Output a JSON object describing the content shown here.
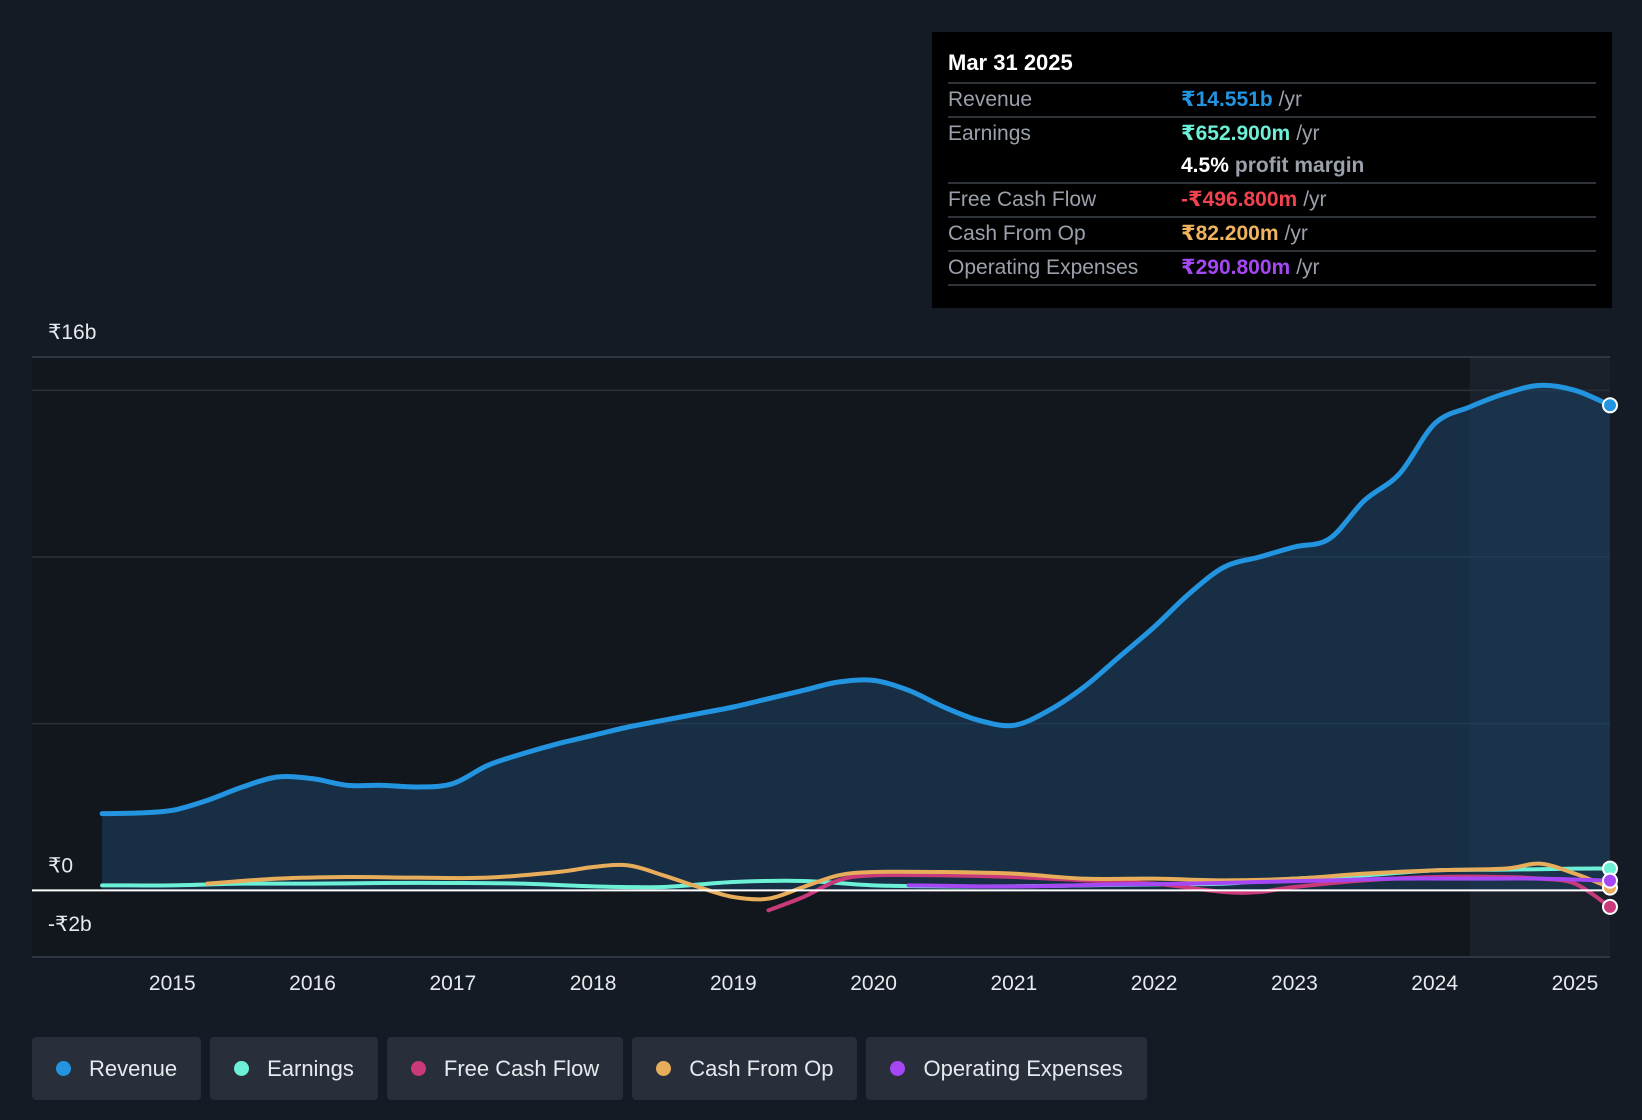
{
  "tooltip": {
    "date": "Mar 31 2025",
    "rows": [
      {
        "label": "Revenue",
        "value": "₹14.551b",
        "unit": "/yr",
        "color": "#2394df"
      },
      {
        "label": "Earnings",
        "value": "₹652.900m",
        "unit": "/yr",
        "color": "#6cf0d6"
      },
      {
        "label": "",
        "value": "4.5%",
        "unit": "profit margin",
        "color": "#ffffff"
      },
      {
        "label": "Free Cash Flow",
        "value": "-₹496.800m",
        "unit": "/yr",
        "color": "#f0424f"
      },
      {
        "label": "Cash From Op",
        "value": "₹82.200m",
        "unit": "/yr",
        "color": "#f0b45e"
      },
      {
        "label": "Operating Expenses",
        "value": "₹290.800m",
        "unit": "/yr",
        "color": "#a547f5"
      }
    ]
  },
  "legend": [
    {
      "label": "Revenue",
      "color": "#2394df"
    },
    {
      "label": "Earnings",
      "color": "#6cf0d6"
    },
    {
      "label": "Free Cash Flow",
      "color": "#c93a7a"
    },
    {
      "label": "Cash From Op",
      "color": "#e8ad5b"
    },
    {
      "label": "Operating Expenses",
      "color": "#a547f5"
    }
  ],
  "chart_data": {
    "type": "area",
    "title": "",
    "xlabel": "",
    "ylabel": "",
    "ylim": [
      -2,
      16
    ],
    "xlim": [
      2014.0,
      2025.25
    ],
    "x_ticks": [
      "2015",
      "2016",
      "2017",
      "2018",
      "2019",
      "2020",
      "2021",
      "2022",
      "2023",
      "2024",
      "2025"
    ],
    "x_tick_values": [
      2015,
      2016,
      2017,
      2018,
      2019,
      2020,
      2021,
      2022,
      2023,
      2024,
      2025
    ],
    "y_labels": [
      {
        "value": 16,
        "label": "₹16b"
      },
      {
        "value": 0,
        "label": "₹0"
      },
      {
        "value": -2,
        "label": "-₹2b"
      }
    ],
    "forecast_start": 2024.25,
    "series": [
      {
        "name": "Revenue",
        "color": "#2394df",
        "filled": true,
        "x": [
          2014.5,
          2014.75,
          2015.0,
          2015.25,
          2015.5,
          2015.75,
          2016.0,
          2016.25,
          2016.5,
          2016.75,
          2017.0,
          2017.25,
          2017.5,
          2017.75,
          2018.0,
          2018.25,
          2018.5,
          2018.75,
          2019.0,
          2019.25,
          2019.5,
          2019.75,
          2020.0,
          2020.25,
          2020.5,
          2020.75,
          2021.0,
          2021.25,
          2021.5,
          2021.75,
          2022.0,
          2022.25,
          2022.5,
          2022.75,
          2023.0,
          2023.25,
          2023.5,
          2023.75,
          2024.0,
          2024.25,
          2024.5,
          2024.75,
          2025.0,
          2025.25
        ],
        "values": [
          2.3,
          2.32,
          2.4,
          2.7,
          3.1,
          3.4,
          3.35,
          3.15,
          3.15,
          3.1,
          3.2,
          3.75,
          4.1,
          4.4,
          4.65,
          4.9,
          5.1,
          5.3,
          5.5,
          5.75,
          6.0,
          6.25,
          6.3,
          6.0,
          5.5,
          5.1,
          4.95,
          5.4,
          6.1,
          7.0,
          7.9,
          8.9,
          9.7,
          10.0,
          10.3,
          10.55,
          11.7,
          12.5,
          14.0,
          14.5,
          14.9,
          15.15,
          15.0,
          14.551
        ]
      },
      {
        "name": "Earnings",
        "color": "#6cf0d6",
        "filled": false,
        "x": [
          2014.5,
          2015.0,
          2015.5,
          2016.0,
          2016.5,
          2017.0,
          2017.5,
          2018.0,
          2018.5,
          2019.0,
          2019.5,
          2020.0,
          2020.5,
          2021.0,
          2021.5,
          2022.0,
          2022.5,
          2023.0,
          2023.5,
          2024.0,
          2024.5,
          2025.0,
          2025.25
        ],
        "values": [
          0.15,
          0.15,
          0.2,
          0.2,
          0.22,
          0.22,
          0.2,
          0.12,
          0.1,
          0.25,
          0.28,
          0.15,
          0.12,
          0.12,
          0.15,
          0.18,
          0.2,
          0.35,
          0.45,
          0.6,
          0.62,
          0.65,
          0.653
        ]
      },
      {
        "name": "Free Cash Flow",
        "color": "#c93a7a",
        "filled": false,
        "x": [
          2019.25,
          2019.5,
          2019.75,
          2020.0,
          2020.5,
          2021.0,
          2021.5,
          2022.0,
          2022.5,
          2022.75,
          2023.0,
          2023.5,
          2024.0,
          2024.5,
          2024.75,
          2025.0,
          2025.25
        ],
        "values": [
          -0.6,
          -0.2,
          0.3,
          0.45,
          0.45,
          0.4,
          0.3,
          0.2,
          -0.05,
          -0.05,
          0.1,
          0.3,
          0.4,
          0.4,
          0.35,
          0.2,
          -0.497
        ]
      },
      {
        "name": "Cash From Op",
        "color": "#e8ad5b",
        "filled": false,
        "x": [
          2015.25,
          2015.75,
          2016.25,
          2016.75,
          2017.25,
          2017.75,
          2018.0,
          2018.25,
          2018.5,
          2018.75,
          2019.0,
          2019.25,
          2019.5,
          2019.75,
          2020.0,
          2020.5,
          2021.0,
          2021.5,
          2022.0,
          2022.5,
          2023.0,
          2023.5,
          2024.0,
          2024.5,
          2024.75,
          2025.0,
          2025.25
        ],
        "values": [
          0.2,
          0.35,
          0.4,
          0.38,
          0.38,
          0.55,
          0.7,
          0.75,
          0.45,
          0.1,
          -0.2,
          -0.25,
          0.1,
          0.45,
          0.55,
          0.55,
          0.5,
          0.35,
          0.35,
          0.3,
          0.35,
          0.5,
          0.6,
          0.65,
          0.8,
          0.5,
          0.082
        ]
      },
      {
        "name": "Operating Expenses",
        "color": "#a547f5",
        "filled": false,
        "x": [
          2020.25,
          2020.75,
          2021.25,
          2021.75,
          2022.25,
          2022.75,
          2023.25,
          2023.75,
          2024.25,
          2024.75,
          2025.25
        ],
        "values": [
          0.15,
          0.12,
          0.13,
          0.18,
          0.2,
          0.25,
          0.3,
          0.35,
          0.35,
          0.35,
          0.291
        ]
      }
    ]
  }
}
